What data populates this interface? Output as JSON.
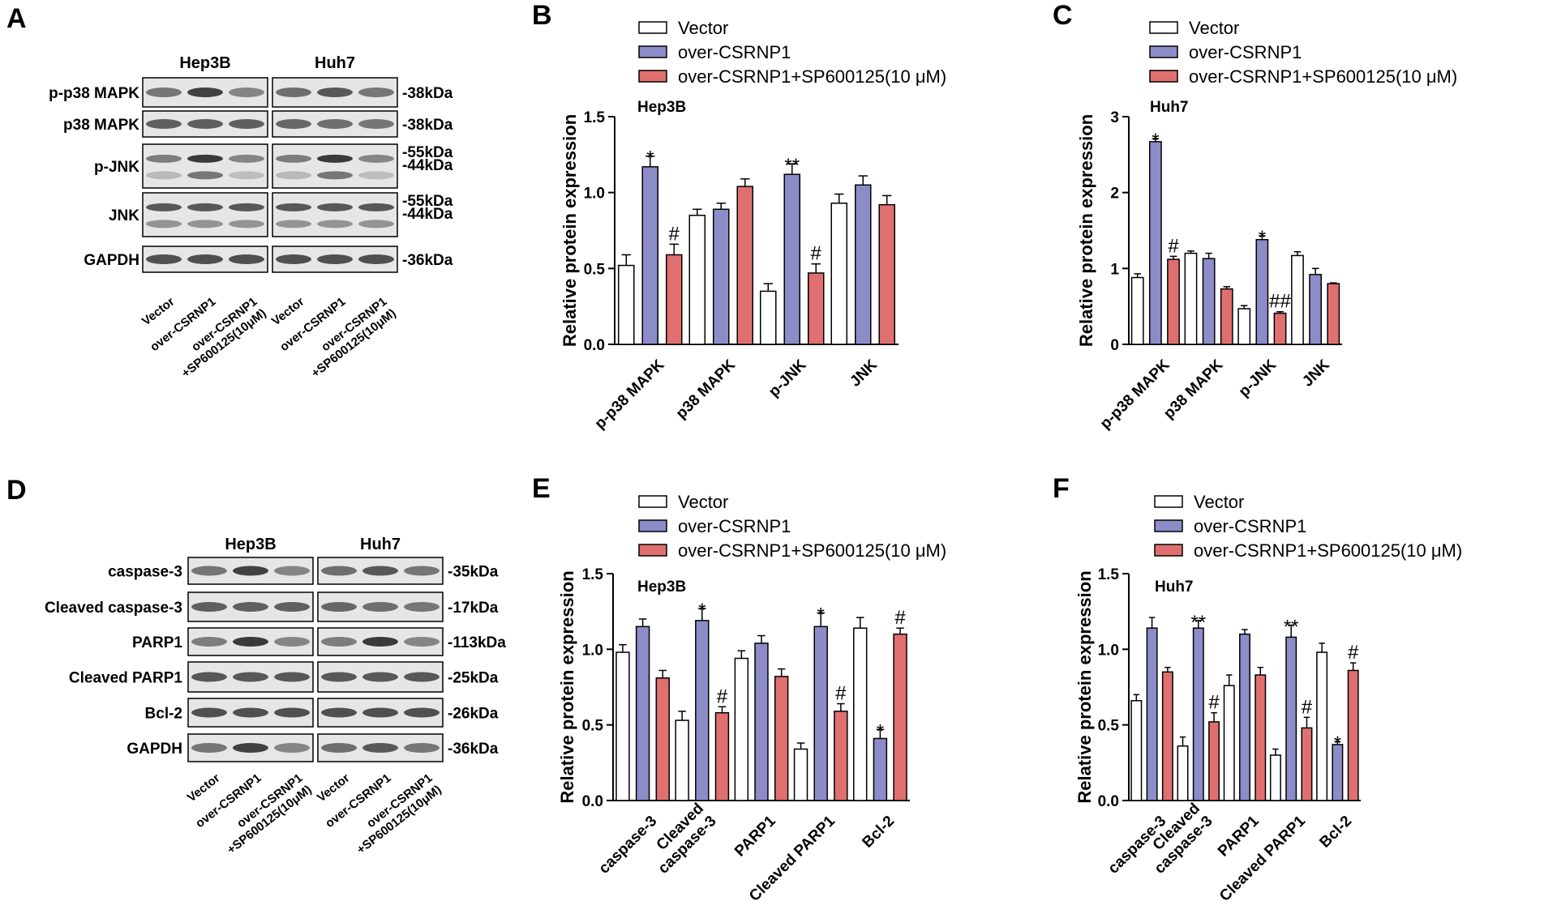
{
  "colors": {
    "vector": "#ffffff",
    "over": "#8c8cc8",
    "sp": "#e07070",
    "stroke": "#000000"
  },
  "blots": [
    {
      "letter": "A",
      "cells": [
        "Hep3B",
        "Huh7"
      ],
      "lanes": [
        "Vector",
        "over-CSRNP1",
        "over-CSRNP1\n+SP600125(10μM)"
      ],
      "proteins": [
        {
          "label": "p-p38 MAPK",
          "kda": [
            "-38kDa"
          ]
        },
        {
          "label": "p38 MAPK",
          "kda": [
            "-38kDa"
          ]
        },
        {
          "label": "p-JNK",
          "kda": [
            "-55kDa",
            "-44kDa"
          ]
        },
        {
          "label": "JNK",
          "kda": [
            "-55kDa",
            "-44kDa"
          ]
        },
        {
          "label": "GAPDH",
          "kda": [
            "-36kDa"
          ]
        }
      ]
    },
    {
      "letter": "D",
      "cells": [
        "Hep3B",
        "Huh7"
      ],
      "lanes": [
        "Vector",
        "over-CSRNP1",
        "over-CSRNP1\n+SP600125(10μM)"
      ],
      "proteins": [
        {
          "label": "caspase-3",
          "kda": [
            "-35kDa"
          ]
        },
        {
          "label": "Cleaved caspase-3",
          "kda": [
            "-17kDa"
          ]
        },
        {
          "label": "PARP1",
          "kda": [
            "-113kDa"
          ]
        },
        {
          "label": "Cleaved PARP1",
          "kda": [
            "-25kDa"
          ]
        },
        {
          "label": "Bcl-2",
          "kda": [
            "-26kDa"
          ]
        },
        {
          "label": "GAPDH",
          "kda": [
            "-36kDa"
          ]
        }
      ]
    }
  ],
  "chart_data": [
    {
      "letter": "B",
      "type": "bar",
      "subtitle": "Hep3B",
      "ylabel": "Relative protein expression",
      "ylim": [
        0,
        1.5
      ],
      "yticks": [
        "0.0",
        "0.5",
        "1.0",
        "1.5"
      ],
      "categories": [
        "p-p38 MAPK",
        "p38 MAPK",
        "p-JNK",
        "JNK"
      ],
      "series": [
        {
          "name": "Vector",
          "values": [
            0.52,
            0.85,
            0.35,
            0.93
          ],
          "errors": [
            0.07,
            0.04,
            0.05,
            0.06
          ]
        },
        {
          "name": "over-CSRNP1",
          "values": [
            1.17,
            0.89,
            1.12,
            1.05
          ],
          "errors": [
            0.07,
            0.04,
            0.07,
            0.06
          ]
        },
        {
          "name": "over-CSRNP1+SP600125(10 μM)",
          "values": [
            0.59,
            1.04,
            0.47,
            0.92
          ],
          "errors": [
            0.07,
            0.05,
            0.06,
            0.06
          ]
        }
      ],
      "annotations": [
        {
          "category": 0,
          "series": 1,
          "text": "*"
        },
        {
          "category": 0,
          "series": 2,
          "text": "#"
        },
        {
          "category": 2,
          "series": 1,
          "text": "**"
        },
        {
          "category": 2,
          "series": 2,
          "text": "#"
        }
      ]
    },
    {
      "letter": "C",
      "type": "bar",
      "subtitle": "Huh7",
      "ylabel": "Relative protein expression",
      "ylim": [
        0,
        3
      ],
      "yticks": [
        "0",
        "1",
        "2",
        "3"
      ],
      "categories": [
        "p-p38 MAPK",
        "p38 MAPK",
        "p-JNK",
        "JNK"
      ],
      "series": [
        {
          "name": "Vector",
          "values": [
            0.88,
            1.2,
            0.47,
            1.17
          ],
          "errors": [
            0.05,
            0.03,
            0.04,
            0.05
          ]
        },
        {
          "name": "over-CSRNP1",
          "values": [
            2.67,
            1.13,
            1.38,
            0.92
          ],
          "errors": [
            0.04,
            0.07,
            0.05,
            0.08
          ]
        },
        {
          "name": "over-CSRNP1+SP600125(10 μM)",
          "values": [
            1.12,
            0.73,
            0.41,
            0.8
          ],
          "errors": [
            0.04,
            0.03,
            0.02,
            0.01
          ]
        }
      ],
      "annotations": [
        {
          "category": 0,
          "series": 1,
          "text": "*"
        },
        {
          "category": 0,
          "series": 2,
          "text": "#"
        },
        {
          "category": 2,
          "series": 1,
          "text": "*"
        },
        {
          "category": 2,
          "series": 2,
          "text": "##"
        }
      ]
    },
    {
      "letter": "E",
      "type": "bar",
      "subtitle": "Hep3B",
      "ylabel": "Relative protein expression",
      "ylim": [
        0,
        1.5
      ],
      "yticks": [
        "0.0",
        "0.5",
        "1.0",
        "1.5"
      ],
      "categories": [
        "caspase-3",
        "Cleaved\ncaspase-3",
        "PARP1",
        "Cleaved PARP1",
        "Bcl-2"
      ],
      "series": [
        {
          "name": "Vector",
          "values": [
            0.98,
            0.53,
            0.94,
            0.34,
            1.14
          ],
          "errors": [
            0.05,
            0.06,
            0.05,
            0.04,
            0.07
          ]
        },
        {
          "name": "over-CSRNP1",
          "values": [
            1.15,
            1.19,
            1.04,
            1.15,
            0.41
          ],
          "errors": [
            0.05,
            0.08,
            0.05,
            0.09,
            0.06
          ]
        },
        {
          "name": "over-CSRNP1+SP600125(10 μM)",
          "values": [
            0.81,
            0.58,
            0.82,
            0.59,
            1.1
          ],
          "errors": [
            0.05,
            0.04,
            0.05,
            0.05,
            0.04
          ]
        }
      ],
      "annotations": [
        {
          "category": 1,
          "series": 1,
          "text": "*"
        },
        {
          "category": 1,
          "series": 2,
          "text": "#"
        },
        {
          "category": 3,
          "series": 1,
          "text": "*"
        },
        {
          "category": 3,
          "series": 2,
          "text": "#"
        },
        {
          "category": 4,
          "series": 1,
          "text": "*"
        },
        {
          "category": 4,
          "series": 2,
          "text": "#"
        }
      ]
    },
    {
      "letter": "F",
      "type": "bar",
      "subtitle": "Huh7",
      "ylabel": "Relative protein expression",
      "ylim": [
        0,
        1.5
      ],
      "yticks": [
        "0.0",
        "0.5",
        "1.0",
        "1.5"
      ],
      "categories": [
        "caspase-3",
        "Cleaved\ncaspase-3",
        "PARP1",
        "Cleaved PARP1",
        "Bcl-2"
      ],
      "series": [
        {
          "name": "Vector",
          "values": [
            0.66,
            0.36,
            0.76,
            0.3,
            0.98
          ],
          "errors": [
            0.04,
            0.06,
            0.07,
            0.04,
            0.06
          ]
        },
        {
          "name": "over-CSRNP1",
          "values": [
            1.14,
            1.14,
            1.1,
            1.08,
            0.37
          ],
          "errors": [
            0.07,
            0.05,
            0.03,
            0.08,
            0.02
          ]
        },
        {
          "name": "over-CSRNP1+SP600125(10 μM)",
          "values": [
            0.85,
            0.52,
            0.83,
            0.48,
            0.86
          ],
          "errors": [
            0.03,
            0.06,
            0.05,
            0.07,
            0.05
          ]
        }
      ],
      "annotations": [
        {
          "category": 1,
          "series": 1,
          "text": "**"
        },
        {
          "category": 1,
          "series": 2,
          "text": "#"
        },
        {
          "category": 3,
          "series": 1,
          "text": "**"
        },
        {
          "category": 3,
          "series": 2,
          "text": "#"
        },
        {
          "category": 4,
          "series": 1,
          "text": "*"
        },
        {
          "category": 4,
          "series": 2,
          "text": "#"
        }
      ]
    }
  ]
}
